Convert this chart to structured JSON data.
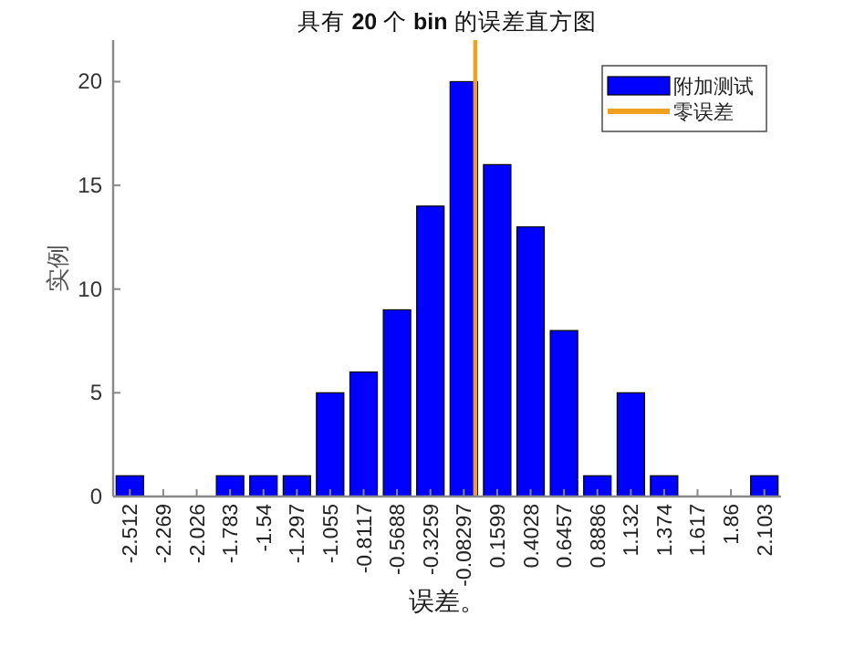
{
  "chart_data": {
    "type": "bar",
    "title": "具有 **20** 个 **bin** 的误差直方图",
    "xlabel": "误差。",
    "ylabel": "实例",
    "x": [
      -2.512,
      -2.269,
      -2.026,
      -1.783,
      -1.54,
      -1.297,
      -1.055,
      -0.8117,
      -0.5688,
      -0.3259,
      -0.08297,
      0.1599,
      0.4028,
      0.6457,
      0.8886,
      1.132,
      1.374,
      1.617,
      1.86,
      2.103
    ],
    "series": [
      {
        "name": "附加测试",
        "color": "#0000ff",
        "values": [
          1,
          0,
          0,
          1,
          1,
          1,
          5,
          6,
          9,
          14,
          20,
          16,
          13,
          8,
          1,
          5,
          1,
          0,
          0,
          1
        ]
      },
      {
        "type": "line",
        "name": "零误差",
        "color": "#f0a020",
        "x": [
          0,
          0
        ],
        "values": [
          0,
          22
        ]
      }
    ],
    "xlim": [
      -2.6335,
      2.2245
    ],
    "xticks": [
      -2.512,
      -2.269,
      -2.026,
      -1.783,
      -1.54,
      -1.297,
      -1.055,
      -0.8117,
      -0.5688,
      -0.3259,
      -0.08297,
      0.1599,
      0.4028,
      0.6457,
      0.8886,
      1.132,
      1.374,
      1.617,
      1.86,
      2.103
    ],
    "ylim": [
      0,
      22
    ],
    "yticks": [
      0,
      5,
      10,
      15,
      20
    ],
    "legend": "top right",
    "grid": false
  }
}
